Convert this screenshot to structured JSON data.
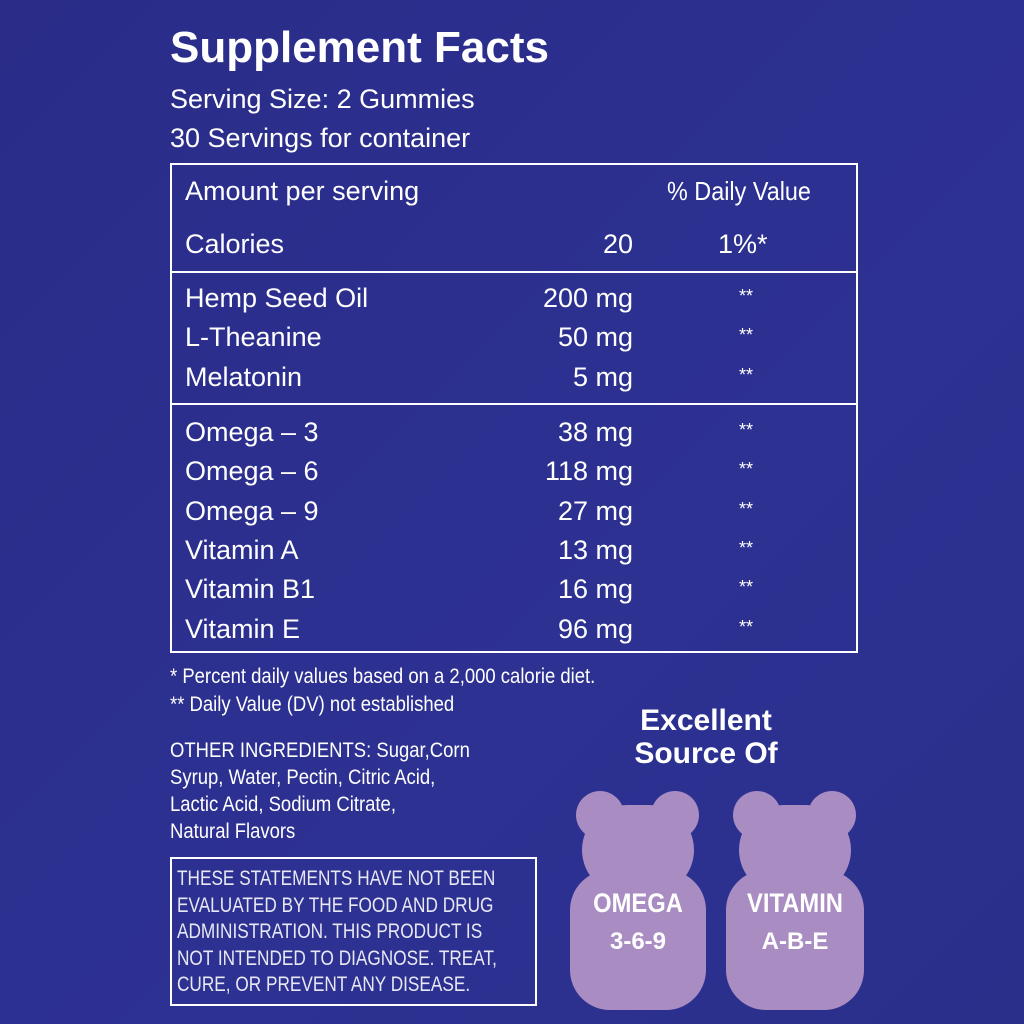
{
  "header": {
    "title": "Supplement Facts",
    "serving_size": "Serving Size: 2 Gummies",
    "servings": "30 Servings for container"
  },
  "table": {
    "amount_label": "Amount per serving",
    "dv_label": "% Daily Value",
    "calories": {
      "name": "Calories",
      "amount": "20",
      "dv": "1%*"
    },
    "groups": [
      [
        {
          "name": "Hemp Seed Oil",
          "amount": "200 mg",
          "dv": "**"
        },
        {
          "name": "L-Theanine",
          "amount": "50 mg",
          "dv": "**"
        },
        {
          "name": "Melatonin",
          "amount": "5 mg",
          "dv": "**"
        }
      ],
      [
        {
          "name": "Omega – 3",
          "amount": "38 mg",
          "dv": "**"
        },
        {
          "name": "Omega – 6",
          "amount": "118 mg",
          "dv": "**"
        },
        {
          "name": "Omega – 9",
          "amount": "27 mg",
          "dv": "**"
        },
        {
          "name": "Vitamin A",
          "amount": "13 mg",
          "dv": "**"
        },
        {
          "name": "Vitamin B1",
          "amount": "16 mg",
          "dv": "**"
        },
        {
          "name": "Vitamin E",
          "amount": "96 mg",
          "dv": "**"
        }
      ]
    ]
  },
  "footnotes": [
    "* Percent daily values based on a 2,000 calorie diet.",
    "** Daily Value (DV) not established"
  ],
  "other_ingredients": [
    "OTHER INGREDIENTS: Sugar,Corn",
    "Syrup, Water, Pectin, Citric Acid,",
    "Lactic Acid, Sodium Citrate,",
    "Natural Flavors"
  ],
  "disclaimer": [
    "THESE STATEMENTS HAVE NOT BEEN",
    "EVALUATED BY THE FOOD AND DRUG",
    "ADMINISTRATION. THIS PRODUCT IS",
    "NOT INTENDED TO DIAGNOSE. TREAT,",
    "CURE, OR PREVENT ANY DISEASE."
  ],
  "badge": {
    "title": [
      "Excellent",
      "Source Of"
    ],
    "bears": [
      {
        "line1": "OMEGA",
        "line2": "3-6-9"
      },
      {
        "line1": "VITAMIN",
        "line2": "A-B-E"
      }
    ]
  }
}
